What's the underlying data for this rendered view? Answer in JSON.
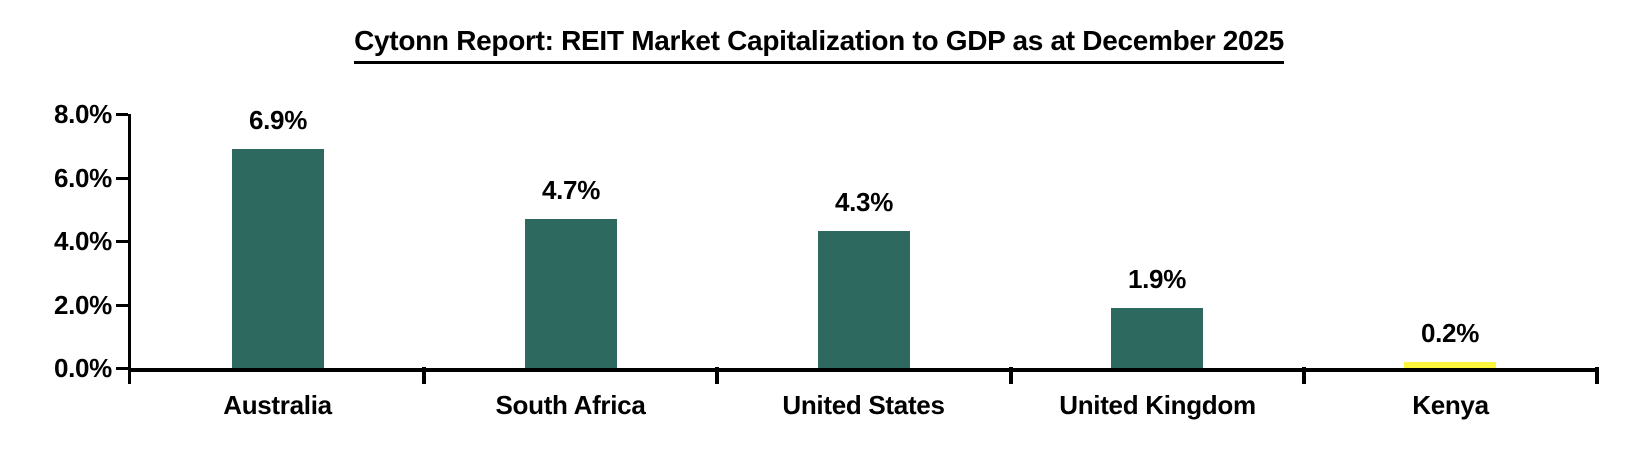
{
  "chart_data": {
    "type": "bar",
    "title": "Cytonn Report: REIT Market Capitalization to GDP as at December 2025",
    "categories": [
      "Australia",
      "South Africa",
      "United States",
      "United Kingdom",
      "Kenya"
    ],
    "values": [
      6.9,
      4.7,
      4.3,
      1.9,
      0.2
    ],
    "value_labels": [
      "6.9%",
      "4.7%",
      "4.3%",
      "1.9%",
      "0.2%"
    ],
    "bar_colors": [
      "#2D695E",
      "#2D695E",
      "#2D695E",
      "#2D695E",
      "#FBF53D"
    ],
    "y_axis": {
      "min": 0,
      "max": 8,
      "ticks": [
        {
          "value": 8,
          "label": "8.0%"
        },
        {
          "value": 6,
          "label": "6.0%"
        },
        {
          "value": 4,
          "label": "4.0%"
        },
        {
          "value": 2,
          "label": "2.0%"
        },
        {
          "value": 0,
          "label": "0.0%"
        }
      ]
    },
    "xlabel": "",
    "ylabel": "",
    "grid": false,
    "legend": "none",
    "colors": {
      "axis": "#000000",
      "text": "#000000",
      "background": "#FFFFFF",
      "bar_teal": "#2D695E",
      "bar_yellow": "#FBF53D"
    }
  }
}
